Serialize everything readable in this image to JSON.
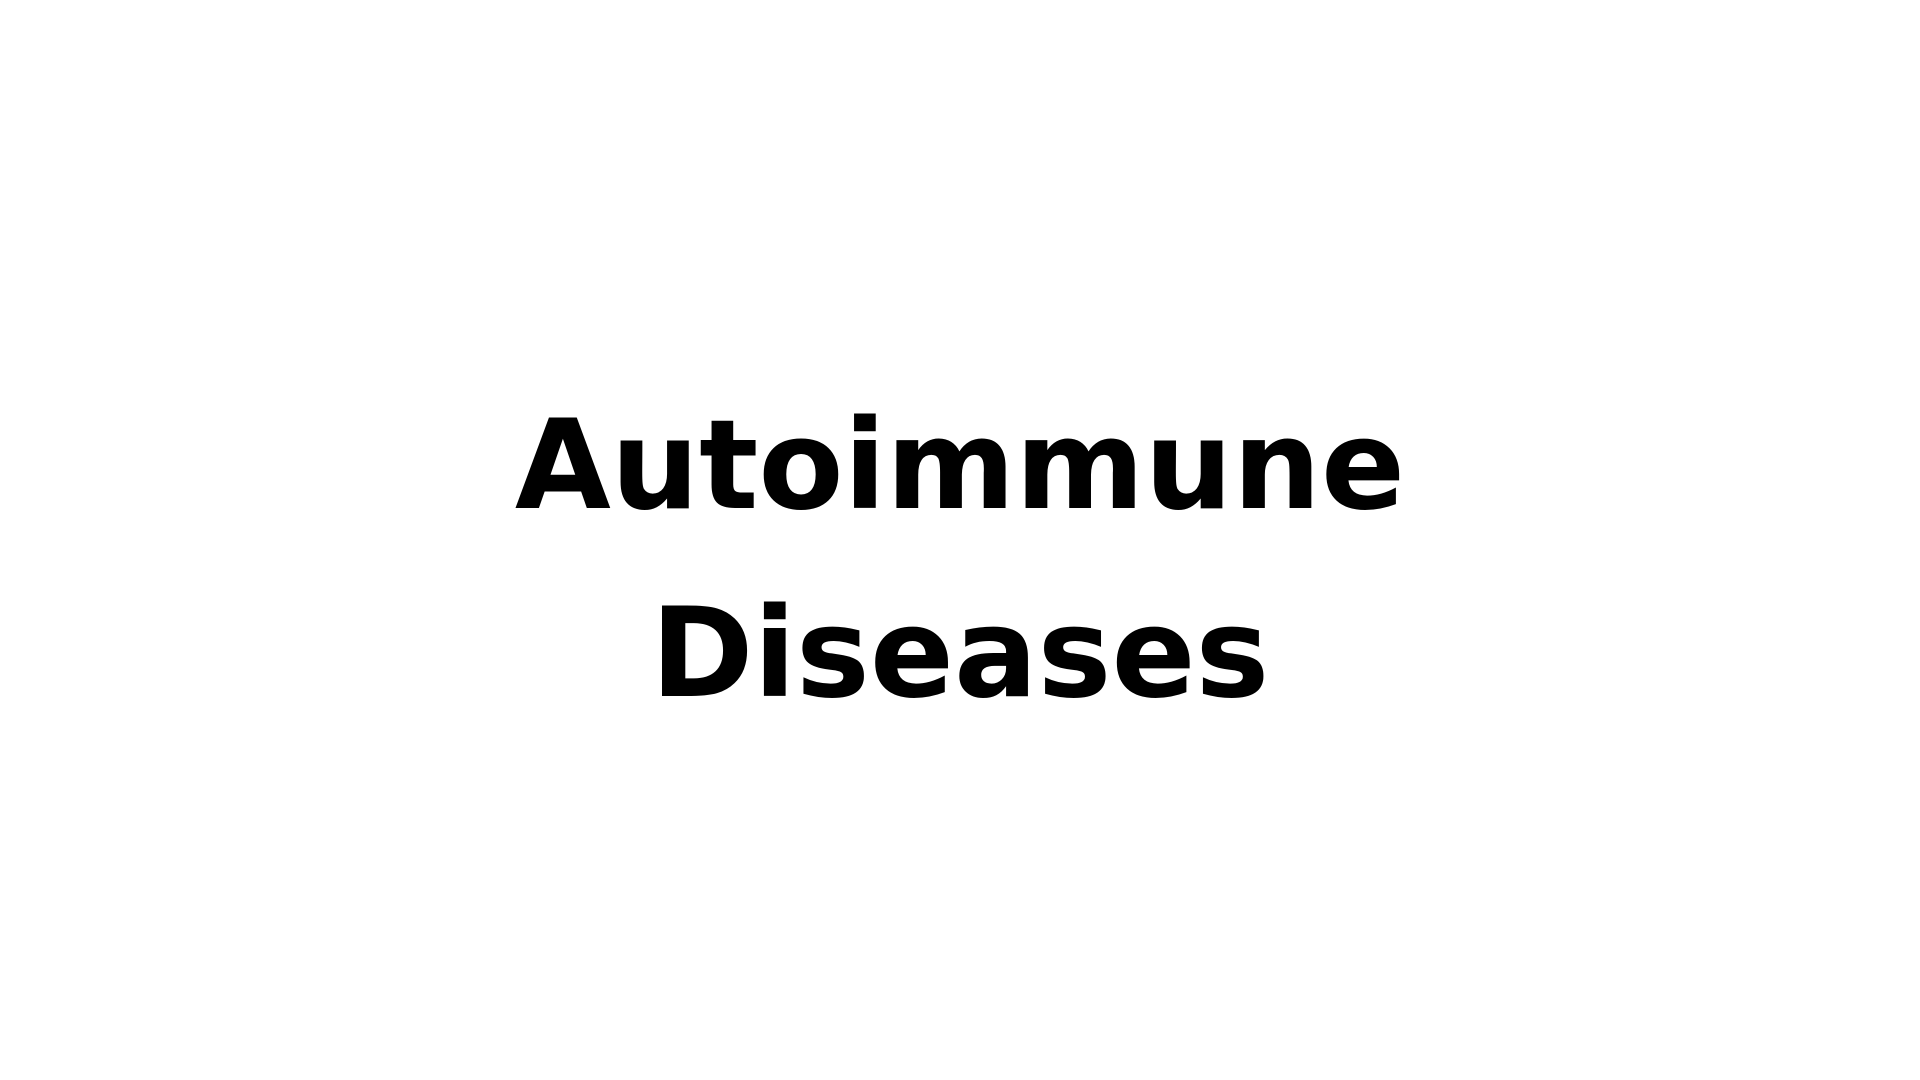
{
  "slide": {
    "title_line_1": "Autoimmune",
    "title_line_2": "Diseases"
  },
  "colors": {
    "background": "#ffffff",
    "text": "#000000"
  }
}
